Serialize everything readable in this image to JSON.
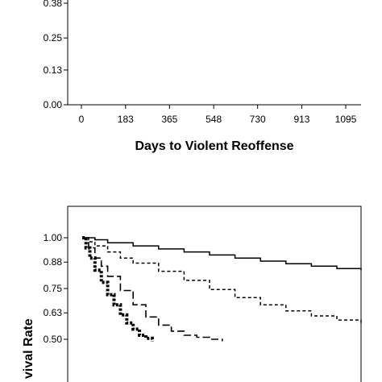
{
  "chart_data": [
    {
      "type": "line",
      "title": "",
      "xlabel": "Days to Violent Reoffense",
      "ylabel": "",
      "x_ticks": [
        "0",
        "183",
        "365",
        "548",
        "730",
        "913",
        "1095"
      ],
      "y_ticks": [
        "0.38",
        "0.25",
        "0.13",
        "0.00"
      ],
      "xlim": [
        0,
        1095
      ],
      "ylim": [
        0.0,
        0.38
      ],
      "series": []
    },
    {
      "type": "line",
      "title": "",
      "xlabel": "",
      "ylabel": "vival Rate",
      "x_ticks": [],
      "y_ticks": [
        "1.00",
        "0.88",
        "0.75",
        "0.63",
        "0.50"
      ],
      "xlim": [
        0,
        1095
      ],
      "ylim": [
        0.5,
        1.0
      ],
      "grid": false,
      "series": [
        {
          "style": "solid",
          "x": [
            0,
            50,
            100,
            200,
            300,
            400,
            500,
            600,
            700,
            800,
            900,
            1000,
            1095
          ],
          "y": [
            1.0,
            0.99,
            0.975,
            0.96,
            0.945,
            0.93,
            0.915,
            0.9,
            0.885,
            0.872,
            0.86,
            0.848,
            0.84
          ]
        },
        {
          "style": "short-dash",
          "x": [
            0,
            25,
            50,
            100,
            150,
            200,
            300,
            400,
            500,
            600,
            700,
            800,
            900,
            1000,
            1095
          ],
          "y": [
            1.0,
            0.98,
            0.96,
            0.93,
            0.9,
            0.875,
            0.835,
            0.79,
            0.745,
            0.705,
            0.67,
            0.64,
            0.615,
            0.595,
            0.58
          ]
        },
        {
          "style": "long-dash",
          "x": [
            0,
            25,
            50,
            75,
            100,
            150,
            200,
            250,
            300,
            350,
            400,
            450,
            500,
            550
          ],
          "y": [
            1.0,
            0.95,
            0.9,
            0.86,
            0.81,
            0.74,
            0.67,
            0.61,
            0.57,
            0.54,
            0.52,
            0.51,
            0.5,
            0.49
          ]
        },
        {
          "style": "thick-dotted",
          "x": [
            0,
            15,
            30,
            50,
            75,
            100,
            125,
            150,
            175,
            200,
            225,
            250,
            275
          ],
          "y": [
            1.0,
            0.95,
            0.9,
            0.84,
            0.78,
            0.72,
            0.67,
            0.62,
            0.58,
            0.55,
            0.52,
            0.505,
            0.49
          ]
        }
      ]
    }
  ]
}
